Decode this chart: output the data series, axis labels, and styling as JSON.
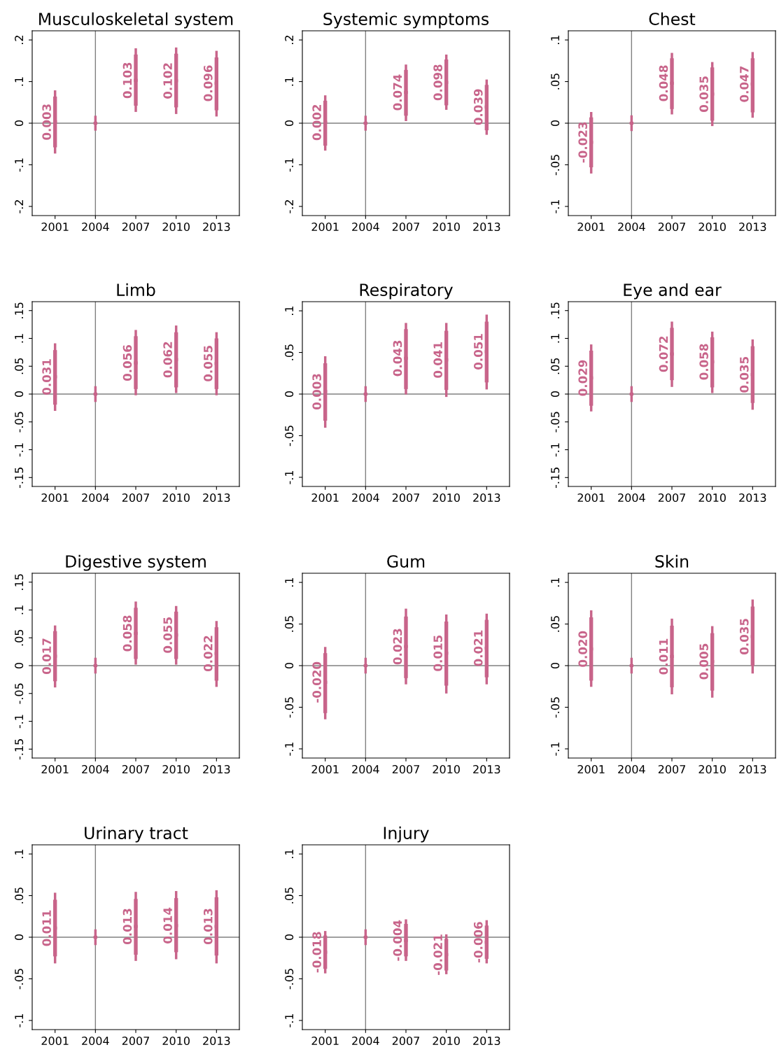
{
  "chart_data": [
    {
      "type": "box",
      "title": "Musculoskeletal system",
      "color": "#c8648a",
      "x": [
        2001,
        2004,
        2007,
        2010,
        2013
      ],
      "xlim": [
        1999.3,
        2014.7
      ],
      "xticks": [
        2001,
        2004,
        2007,
        2010,
        2013
      ],
      "ylim": [
        -0.222,
        0.222
      ],
      "yticks": [
        {
          "value": -0.2,
          "label": "-.2"
        },
        {
          "value": -0.1,
          "label": "-.1"
        },
        0,
        {
          "value": 0.1,
          "label": ".1"
        },
        {
          "value": 0.2,
          "label": ".2"
        }
      ],
      "boxes": [
        {
          "low": -0.07,
          "q1": -0.058,
          "median": 0.003,
          "q3": 0.064,
          "high": 0.076
        },
        {
          "low": -0.015,
          "q1": 0,
          "median": 0,
          "q3": 0,
          "high": 0.015
        },
        {
          "low": 0.03,
          "q1": 0.042,
          "median": 0.103,
          "q3": 0.165,
          "high": 0.177
        },
        {
          "low": 0.025,
          "q1": 0.038,
          "median": 0.102,
          "q3": 0.167,
          "high": 0.179
        },
        {
          "low": 0.019,
          "q1": 0.031,
          "median": 0.096,
          "q3": 0.158,
          "high": 0.171
        }
      ],
      "annotations": [
        {
          "text": "0.003",
          "x": 2001,
          "y": 0.003
        },
        {
          "text": "0.103",
          "x": 2007,
          "y": 0.103
        },
        {
          "text": "0.102",
          "x": 2010,
          "y": 0.102
        },
        {
          "text": "0.096",
          "x": 2013,
          "y": 0.096
        }
      ],
      "ref_lines": [
        {
          "axis": "y",
          "value": 0,
          "color": "#808080"
        },
        {
          "axis": "x",
          "value": 2004,
          "color": "#808080"
        }
      ]
    },
    {
      "type": "box",
      "title": "Systemic symptoms",
      "color": "#c8648a",
      "x": [
        2001,
        2004,
        2007,
        2010,
        2013
      ],
      "xlim": [
        1999.3,
        2014.7
      ],
      "xticks": [
        2001,
        2004,
        2007,
        2010,
        2013
      ],
      "ylim": [
        -0.222,
        0.222
      ],
      "yticks": [
        {
          "value": -0.2,
          "label": "-.2"
        },
        {
          "value": -0.1,
          "label": "-.1"
        },
        0,
        {
          "value": 0.1,
          "label": ".1"
        },
        {
          "value": 0.2,
          "label": ".2"
        }
      ],
      "boxes": [
        {
          "low": -0.063,
          "q1": -0.054,
          "median": 0.002,
          "q3": 0.054,
          "high": 0.064
        },
        {
          "low": -0.015,
          "q1": -0.003,
          "median": 0,
          "q3": 0.003,
          "high": 0.015
        },
        {
          "low": 0.008,
          "q1": 0.018,
          "median": 0.074,
          "q3": 0.128,
          "high": 0.138
        },
        {
          "low": 0.035,
          "q1": 0.043,
          "median": 0.098,
          "q3": 0.153,
          "high": 0.162
        },
        {
          "low": -0.025,
          "q1": -0.017,
          "median": 0.039,
          "q3": 0.092,
          "high": 0.102
        }
      ],
      "annotations": [
        {
          "text": "0.002",
          "x": 2001,
          "y": 0.002
        },
        {
          "text": "0.074",
          "x": 2007,
          "y": 0.074
        },
        {
          "text": "0.098",
          "x": 2010,
          "y": 0.098
        },
        {
          "text": "0.039",
          "x": 2013,
          "y": 0.039
        }
      ],
      "ref_lines": [
        {
          "axis": "y",
          "value": 0,
          "color": "#808080"
        },
        {
          "axis": "x",
          "value": 2004,
          "color": "#808080"
        }
      ]
    },
    {
      "type": "box",
      "title": "Chest",
      "color": "#c8648a",
      "x": [
        2001,
        2004,
        2007,
        2010,
        2013
      ],
      "xlim": [
        1999.3,
        2014.7
      ],
      "xticks": [
        2001,
        2004,
        2007,
        2010,
        2013
      ],
      "ylim": [
        -0.111,
        0.111
      ],
      "yticks": [
        {
          "value": -0.1,
          "label": "-.1"
        },
        {
          "value": -0.05,
          "label": "-.05"
        },
        0,
        {
          "value": 0.05,
          "label": ".05"
        },
        {
          "value": 0.1,
          "label": ".1"
        }
      ],
      "boxes": [
        {
          "low": -0.059,
          "q1": -0.053,
          "median": -0.023,
          "q3": 0.007,
          "high": 0.012
        },
        {
          "low": -0.008,
          "q1": 0,
          "median": 0,
          "q3": 0,
          "high": 0.008
        },
        {
          "low": 0.012,
          "q1": 0.017,
          "median": 0.048,
          "q3": 0.078,
          "high": 0.083
        },
        {
          "low": -0.002,
          "q1": 0.003,
          "median": 0.035,
          "q3": 0.067,
          "high": 0.072
        },
        {
          "low": 0.008,
          "q1": 0.013,
          "median": 0.047,
          "q3": 0.078,
          "high": 0.084
        }
      ],
      "annotations": [
        {
          "text": "-0.023",
          "x": 2001,
          "y": -0.023
        },
        {
          "text": "0.048",
          "x": 2007,
          "y": 0.048
        },
        {
          "text": "0.035",
          "x": 2010,
          "y": 0.035
        },
        {
          "text": "0.047",
          "x": 2013,
          "y": 0.047
        }
      ],
      "ref_lines": [
        {
          "axis": "y",
          "value": 0,
          "color": "#808080"
        },
        {
          "axis": "x",
          "value": 2004,
          "color": "#808080"
        }
      ]
    },
    {
      "type": "box",
      "title": "Limb",
      "color": "#c8648a",
      "x": [
        2001,
        2004,
        2007,
        2010,
        2013
      ],
      "xlim": [
        1999.3,
        2014.7
      ],
      "xticks": [
        2001,
        2004,
        2007,
        2010,
        2013
      ],
      "ylim": [
        -0.166,
        0.166
      ],
      "yticks": [
        {
          "value": -0.15,
          "label": "-.15"
        },
        {
          "value": -0.1,
          "label": "-.1"
        },
        {
          "value": -0.05,
          "label": "-.05"
        },
        0,
        {
          "value": 0.05,
          "label": ".05"
        },
        {
          "value": 0.1,
          "label": ".1"
        },
        {
          "value": 0.15,
          "label": ".15"
        }
      ],
      "boxes": [
        {
          "low": -0.028,
          "q1": -0.019,
          "median": 0.031,
          "q3": 0.079,
          "high": 0.089
        },
        {
          "low": -0.012,
          "q1": 0,
          "median": 0,
          "q3": 0,
          "high": 0.012
        },
        {
          "low": 0.0,
          "q1": 0.009,
          "median": 0.056,
          "q3": 0.104,
          "high": 0.113
        },
        {
          "low": 0.004,
          "q1": 0.012,
          "median": 0.062,
          "q3": 0.111,
          "high": 0.121
        },
        {
          "low": 0.0,
          "q1": 0.009,
          "median": 0.055,
          "q3": 0.1,
          "high": 0.109
        }
      ],
      "annotations": [
        {
          "text": "0.031",
          "x": 2001,
          "y": 0.031
        },
        {
          "text": "0.056",
          "x": 2007,
          "y": 0.056
        },
        {
          "text": "0.062",
          "x": 2010,
          "y": 0.062
        },
        {
          "text": "0.055",
          "x": 2013,
          "y": 0.055
        }
      ],
      "ref_lines": [
        {
          "axis": "y",
          "value": 0,
          "color": "#808080"
        },
        {
          "axis": "x",
          "value": 2004,
          "color": "#808080"
        }
      ]
    },
    {
      "type": "box",
      "title": "Respiratory",
      "color": "#c8648a",
      "x": [
        2001,
        2004,
        2007,
        2010,
        2013
      ],
      "xlim": [
        1999.3,
        2014.7
      ],
      "xticks": [
        2001,
        2004,
        2007,
        2010,
        2013
      ],
      "ylim": [
        -0.111,
        0.111
      ],
      "yticks": [
        {
          "value": -0.1,
          "label": "-.1"
        },
        {
          "value": -0.05,
          "label": "-.05"
        },
        0,
        {
          "value": 0.05,
          "label": ".05"
        },
        {
          "value": 0.1,
          "label": ".1"
        }
      ],
      "boxes": [
        {
          "low": -0.039,
          "q1": -0.032,
          "median": 0.003,
          "q3": 0.037,
          "high": 0.044
        },
        {
          "low": -0.008,
          "q1": 0,
          "median": 0,
          "q3": 0,
          "high": 0.008
        },
        {
          "low": 0.001,
          "q1": 0.006,
          "median": 0.043,
          "q3": 0.078,
          "high": 0.084
        },
        {
          "low": -0.002,
          "q1": 0.005,
          "median": 0.041,
          "q3": 0.076,
          "high": 0.084
        },
        {
          "low": 0.007,
          "q1": 0.014,
          "median": 0.051,
          "q3": 0.087,
          "high": 0.094
        }
      ],
      "annotations": [
        {
          "text": "0.003",
          "x": 2001,
          "y": 0.003
        },
        {
          "text": "0.043",
          "x": 2007,
          "y": 0.043
        },
        {
          "text": "0.041",
          "x": 2010,
          "y": 0.041
        },
        {
          "text": "0.051",
          "x": 2013,
          "y": 0.051
        }
      ],
      "ref_lines": [
        {
          "axis": "y",
          "value": 0,
          "color": "#808080"
        },
        {
          "axis": "x",
          "value": 2004,
          "color": "#808080"
        }
      ]
    },
    {
      "type": "box",
      "title": "Eye and ear",
      "color": "#c8648a",
      "x": [
        2001,
        2004,
        2007,
        2010,
        2013
      ],
      "xlim": [
        1999.3,
        2014.7
      ],
      "xticks": [
        2001,
        2004,
        2007,
        2010,
        2013
      ],
      "ylim": [
        -0.166,
        0.166
      ],
      "yticks": [
        {
          "value": -0.15,
          "label": "-.15"
        },
        {
          "value": -0.1,
          "label": "-.1"
        },
        {
          "value": -0.05,
          "label": "-.05"
        },
        0,
        {
          "value": 0.05,
          "label": ".05"
        },
        {
          "value": 0.1,
          "label": ".1"
        },
        {
          "value": 0.15,
          "label": ".15"
        }
      ],
      "boxes": [
        {
          "low": -0.029,
          "q1": -0.021,
          "median": 0.029,
          "q3": 0.078,
          "high": 0.087
        },
        {
          "low": -0.012,
          "q1": 0,
          "median": 0,
          "q3": 0,
          "high": 0.012
        },
        {
          "low": 0.015,
          "q1": 0.025,
          "median": 0.072,
          "q3": 0.119,
          "high": 0.128
        },
        {
          "low": 0.004,
          "q1": 0.012,
          "median": 0.058,
          "q3": 0.102,
          "high": 0.11
        },
        {
          "low": -0.026,
          "q1": -0.016,
          "median": 0.035,
          "q3": 0.086,
          "high": 0.096
        }
      ],
      "annotations": [
        {
          "text": "0.029",
          "x": 2001,
          "y": 0.029
        },
        {
          "text": "0.072",
          "x": 2007,
          "y": 0.072
        },
        {
          "text": "0.058",
          "x": 2010,
          "y": 0.058
        },
        {
          "text": "0.035",
          "x": 2013,
          "y": 0.035
        }
      ],
      "ref_lines": [
        {
          "axis": "y",
          "value": 0,
          "color": "#808080"
        },
        {
          "axis": "x",
          "value": 2004,
          "color": "#808080"
        }
      ]
    },
    {
      "type": "box",
      "title": "Digestive system",
      "color": "#c8648a",
      "x": [
        2001,
        2004,
        2007,
        2010,
        2013
      ],
      "xlim": [
        1999.3,
        2014.7
      ],
      "xticks": [
        2001,
        2004,
        2007,
        2010,
        2013
      ],
      "ylim": [
        -0.166,
        0.166
      ],
      "yticks": [
        {
          "value": -0.15,
          "label": "-.15"
        },
        {
          "value": -0.1,
          "label": "-.1"
        },
        {
          "value": -0.05,
          "label": "-.05"
        },
        0,
        {
          "value": 0.05,
          "label": ".05"
        },
        {
          "value": 0.1,
          "label": ".1"
        },
        {
          "value": 0.15,
          "label": ".15"
        }
      ],
      "boxes": [
        {
          "low": -0.037,
          "q1": -0.028,
          "median": 0.017,
          "q3": 0.062,
          "high": 0.07
        },
        {
          "low": -0.012,
          "q1": 0,
          "median": 0,
          "q3": 0,
          "high": 0.012
        },
        {
          "low": 0.004,
          "q1": 0.012,
          "median": 0.058,
          "q3": 0.104,
          "high": 0.113
        },
        {
          "low": 0.004,
          "q1": 0.012,
          "median": 0.055,
          "q3": 0.097,
          "high": 0.105
        },
        {
          "low": -0.036,
          "q1": -0.027,
          "median": 0.022,
          "q3": 0.069,
          "high": 0.078
        }
      ],
      "annotations": [
        {
          "text": "0.017",
          "x": 2001,
          "y": 0.017
        },
        {
          "text": "0.058",
          "x": 2007,
          "y": 0.058
        },
        {
          "text": "0.055",
          "x": 2010,
          "y": 0.055
        },
        {
          "text": "0.022",
          "x": 2013,
          "y": 0.022
        }
      ],
      "ref_lines": [
        {
          "axis": "y",
          "value": 0,
          "color": "#808080"
        },
        {
          "axis": "x",
          "value": 2004,
          "color": "#808080"
        }
      ]
    },
    {
      "type": "box",
      "title": "Gum",
      "color": "#c8648a",
      "x": [
        2001,
        2004,
        2007,
        2010,
        2013
      ],
      "xlim": [
        1999.3,
        2014.7
      ],
      "xticks": [
        2001,
        2004,
        2007,
        2010,
        2013
      ],
      "ylim": [
        -0.111,
        0.111
      ],
      "yticks": [
        {
          "value": -0.1,
          "label": "-.1"
        },
        {
          "value": -0.05,
          "label": "-.05"
        },
        0,
        {
          "value": 0.05,
          "label": ".05"
        },
        {
          "value": 0.1,
          "label": ".1"
        }
      ],
      "boxes": [
        {
          "low": -0.063,
          "q1": -0.057,
          "median": -0.02,
          "q3": 0.015,
          "high": 0.021
        },
        {
          "low": -0.008,
          "q1": 0,
          "median": 0,
          "q3": 0,
          "high": 0.008
        },
        {
          "low": -0.021,
          "q1": -0.015,
          "median": 0.023,
          "q3": 0.059,
          "high": 0.067
        },
        {
          "low": -0.032,
          "q1": -0.024,
          "median": 0.015,
          "q3": 0.053,
          "high": 0.06
        },
        {
          "low": -0.021,
          "q1": -0.014,
          "median": 0.021,
          "q3": 0.055,
          "high": 0.061
        }
      ],
      "annotations": [
        {
          "text": "-0.020",
          "x": 2001,
          "y": -0.02
        },
        {
          "text": "0.023",
          "x": 2007,
          "y": 0.023
        },
        {
          "text": "0.015",
          "x": 2010,
          "y": 0.015
        },
        {
          "text": "0.021",
          "x": 2013,
          "y": 0.021
        }
      ],
      "ref_lines": [
        {
          "axis": "y",
          "value": 0,
          "color": "#808080"
        },
        {
          "axis": "x",
          "value": 2004,
          "color": "#808080"
        }
      ]
    },
    {
      "type": "box",
      "title": "Skin",
      "color": "#c8648a",
      "x": [
        2001,
        2004,
        2007,
        2010,
        2013
      ],
      "xlim": [
        1999.3,
        2014.7
      ],
      "xticks": [
        2001,
        2004,
        2007,
        2010,
        2013
      ],
      "ylim": [
        -0.111,
        0.111
      ],
      "yticks": [
        {
          "value": -0.1,
          "label": "-.1"
        },
        {
          "value": -0.05,
          "label": "-.05"
        },
        0,
        {
          "value": 0.05,
          "label": ".05"
        },
        {
          "value": 0.1,
          "label": ".1"
        }
      ],
      "boxes": [
        {
          "low": -0.024,
          "q1": -0.018,
          "median": 0.02,
          "q3": 0.058,
          "high": 0.065
        },
        {
          "low": -0.008,
          "q1": 0,
          "median": 0,
          "q3": 0,
          "high": 0.008
        },
        {
          "low": -0.033,
          "q1": -0.026,
          "median": 0.011,
          "q3": 0.048,
          "high": 0.055
        },
        {
          "low": -0.037,
          "q1": -0.03,
          "median": 0.005,
          "q3": 0.039,
          "high": 0.046
        },
        {
          "low": -0.008,
          "q1": 0.0,
          "median": 0.035,
          "q3": 0.071,
          "high": 0.078
        }
      ],
      "annotations": [
        {
          "text": "0.020",
          "x": 2001,
          "y": 0.02
        },
        {
          "text": "0.011",
          "x": 2007,
          "y": 0.011
        },
        {
          "text": "0.005",
          "x": 2010,
          "y": 0.005
        },
        {
          "text": "0.035",
          "x": 2013,
          "y": 0.035
        }
      ],
      "ref_lines": [
        {
          "axis": "y",
          "value": 0,
          "color": "#808080"
        },
        {
          "axis": "x",
          "value": 2004,
          "color": "#808080"
        }
      ]
    },
    {
      "type": "box",
      "title": "Urinary tract",
      "color": "#c8648a",
      "x": [
        2001,
        2004,
        2007,
        2010,
        2013
      ],
      "xlim": [
        1999.3,
        2014.7
      ],
      "xticks": [
        2001,
        2004,
        2007,
        2010,
        2013
      ],
      "ylim": [
        -0.111,
        0.111
      ],
      "yticks": [
        {
          "value": -0.1,
          "label": "-.1"
        },
        {
          "value": -0.05,
          "label": "-.05"
        },
        0,
        {
          "value": 0.05,
          "label": ".05"
        },
        {
          "value": 0.1,
          "label": ".1"
        }
      ],
      "boxes": [
        {
          "low": -0.03,
          "q1": -0.023,
          "median": 0.011,
          "q3": 0.045,
          "high": 0.052
        },
        {
          "low": -0.008,
          "q1": 0,
          "median": 0,
          "q3": 0,
          "high": 0.008
        },
        {
          "low": -0.027,
          "q1": -0.021,
          "median": 0.013,
          "q3": 0.046,
          "high": 0.053
        },
        {
          "low": -0.025,
          "q1": -0.018,
          "median": 0.014,
          "q3": 0.047,
          "high": 0.054
        },
        {
          "low": -0.03,
          "q1": -0.022,
          "median": 0.013,
          "q3": 0.048,
          "high": 0.055
        }
      ],
      "annotations": [
        {
          "text": "0.011",
          "x": 2001,
          "y": 0.011
        },
        {
          "text": "0.013",
          "x": 2007,
          "y": 0.013
        },
        {
          "text": "0.014",
          "x": 2010,
          "y": 0.014
        },
        {
          "text": "0.013",
          "x": 2013,
          "y": 0.013
        }
      ],
      "ref_lines": [
        {
          "axis": "y",
          "value": 0,
          "color": "#808080"
        },
        {
          "axis": "x",
          "value": 2004,
          "color": "#808080"
        }
      ]
    },
    {
      "type": "box",
      "title": "Injury",
      "color": "#c8648a",
      "x": [
        2001,
        2004,
        2007,
        2010,
        2013
      ],
      "xlim": [
        1999.3,
        2014.7
      ],
      "xticks": [
        2001,
        2004,
        2007,
        2010,
        2013
      ],
      "ylim": [
        -0.111,
        0.111
      ],
      "yticks": [
        {
          "value": -0.1,
          "label": "-.1"
        },
        {
          "value": -0.05,
          "label": "-.05"
        },
        0,
        {
          "value": 0.05,
          "label": ".05"
        },
        {
          "value": 0.1,
          "label": ".1"
        }
      ],
      "boxes": [
        {
          "low": -0.042,
          "q1": -0.038,
          "median": -0.018,
          "q3": 0.002,
          "high": 0.006
        },
        {
          "low": -0.008,
          "q1": 0,
          "median": 0,
          "q3": 0,
          "high": 0.008
        },
        {
          "low": -0.027,
          "q1": -0.023,
          "median": -0.004,
          "q3": 0.016,
          "high": 0.02
        },
        {
          "low": -0.043,
          "q1": -0.04,
          "median": -0.021,
          "q3": -0.002,
          "high": 0.002
        },
        {
          "low": -0.03,
          "q1": -0.026,
          "median": -0.006,
          "q3": 0.014,
          "high": 0.019
        }
      ],
      "annotations": [
        {
          "text": "-0.018",
          "x": 2001,
          "y": -0.018
        },
        {
          "text": "-0.004",
          "x": 2007,
          "y": -0.004
        },
        {
          "text": "-0.021",
          "x": 2010,
          "y": -0.021
        },
        {
          "text": "-0.006",
          "x": 2013,
          "y": -0.006
        }
      ],
      "ref_lines": [
        {
          "axis": "y",
          "value": 0,
          "color": "#808080"
        },
        {
          "axis": "x",
          "value": 2004,
          "color": "#808080"
        }
      ]
    }
  ]
}
